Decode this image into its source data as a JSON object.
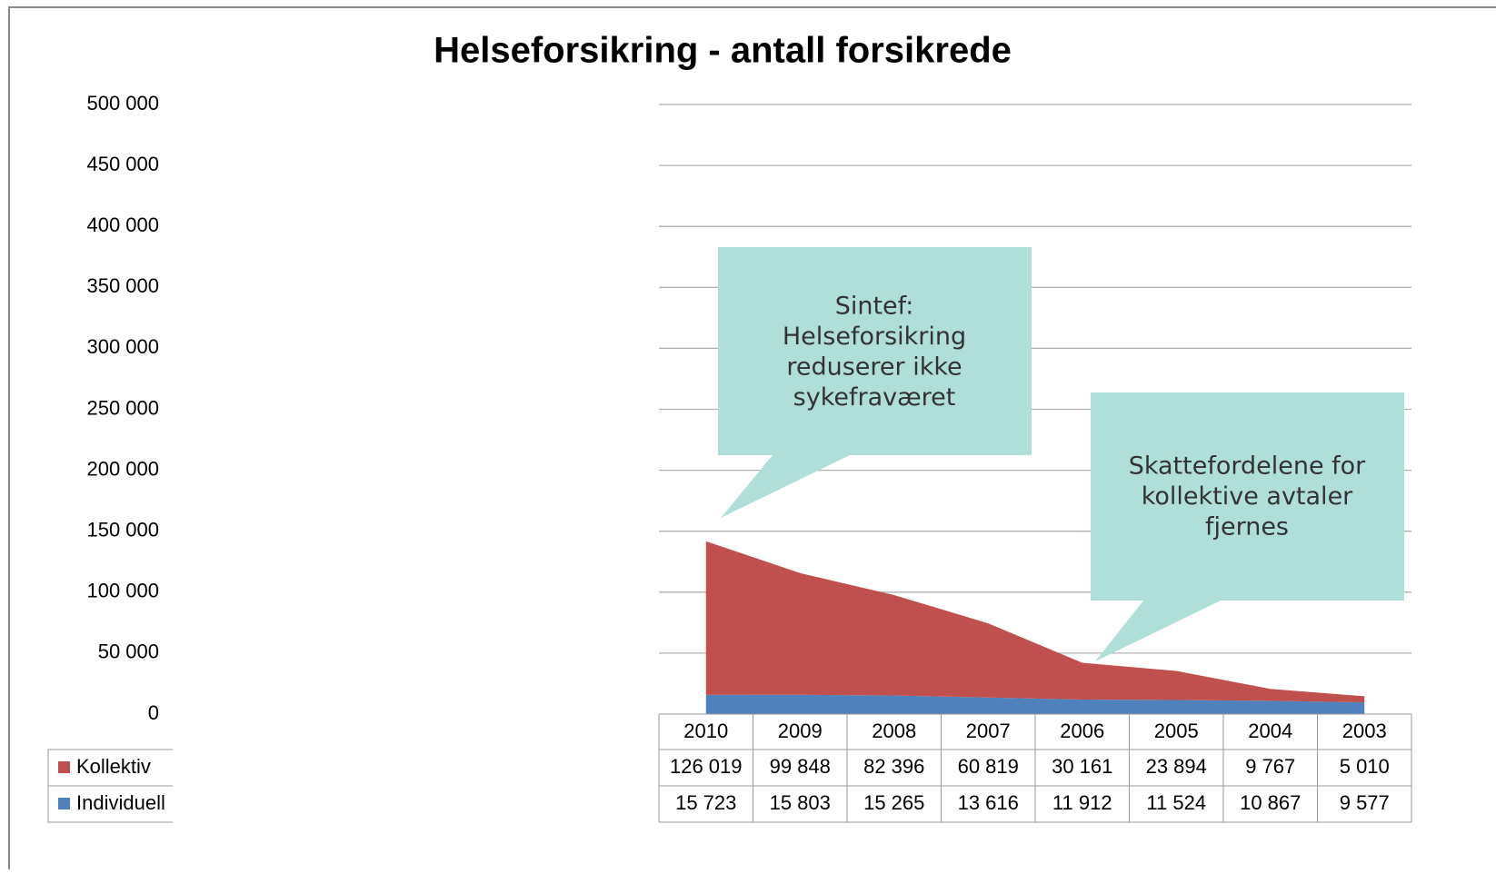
{
  "chart_data": {
    "type": "area",
    "title": "Helseforsikring - antall forsikrede",
    "categories": [
      "2010",
      "2009",
      "2008",
      "2007",
      "2006",
      "2005",
      "2004",
      "2003"
    ],
    "series": [
      {
        "name": "Kollektiv",
        "color": "#c0504d",
        "values": [
          126019,
          99848,
          82396,
          60819,
          30161,
          23894,
          9767,
          5010
        ],
        "value_labels": [
          "126 019",
          "99 848",
          "82 396",
          "60 819",
          "30 161",
          "23 894",
          "9 767",
          "5 010"
        ]
      },
      {
        "name": "Individuell",
        "color": "#4f81bd",
        "values": [
          15723,
          15803,
          15265,
          13616,
          11912,
          11524,
          10867,
          9577
        ],
        "value_labels": [
          "15 723",
          "15 803",
          "15 265",
          "13 616",
          "11 912",
          "11 524",
          "10 867",
          "9 577"
        ]
      }
    ],
    "stacked": true,
    "ylim": [
      0,
      500000
    ],
    "yticks": [
      0,
      {
        "value": 50000,
        "label": "50 000"
      },
      {
        "value": 100000,
        "label": "100 000"
      },
      {
        "value": 150000,
        "label": "150 000"
      },
      {
        "value": 200000,
        "label": "200 000"
      },
      {
        "value": 250000,
        "label": "250 000"
      },
      {
        "value": 300000,
        "label": "300 000"
      },
      {
        "value": 350000,
        "label": "350 000"
      },
      {
        "value": 400000,
        "label": "400 000"
      },
      {
        "value": 450000,
        "label": "450 000"
      },
      {
        "value": 500000,
        "label": "500 000"
      }
    ],
    "grid": true,
    "annotations": [
      {
        "lines": [
          "Sintef:",
          "Helseforsikring",
          "reduserer ikke",
          "sykefraværet"
        ]
      },
      {
        "lines": [
          "Skattefordelene for",
          "kollektive avtaler",
          "fjernes"
        ]
      }
    ]
  }
}
